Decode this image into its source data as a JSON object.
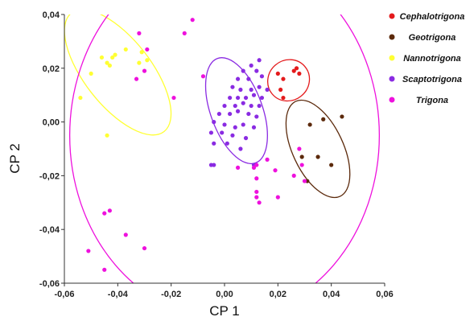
{
  "chart_data": {
    "type": "scatter",
    "xlabel": "CP 1",
    "ylabel": "CP 2",
    "xlim": [
      -0.06,
      0.06
    ],
    "ylim": [
      -0.06,
      0.04
    ],
    "x_ticks": [
      "-0,06",
      "-0,04",
      "-0,02",
      "0,00",
      "0,02",
      "0,04",
      "0,06"
    ],
    "y_ticks": [
      "-0,06",
      "-0,04",
      "-0,02",
      "0,00",
      "0,02",
      "0,04"
    ],
    "grid": false,
    "legend_position": "top-right",
    "series": [
      {
        "name": "Cephalotrigona",
        "color": "#e41a1c",
        "points": [
          [
            0.02,
            0.018
          ],
          [
            0.022,
            0.016
          ],
          [
            0.026,
            0.019
          ],
          [
            0.027,
            0.02
          ],
          [
            0.028,
            0.018
          ],
          [
            0.021,
            0.012
          ],
          [
            0.022,
            0.009
          ]
        ],
        "ellipse": {
          "cx": 0.024,
          "cy": 0.0155,
          "rx": 0.008,
          "ry": 0.0075,
          "angle": 40
        }
      },
      {
        "name": "Geotrigona",
        "color": "#5c2a0c",
        "points": [
          [
            0.032,
            -0.001
          ],
          [
            0.037,
            0.001
          ],
          [
            0.044,
            0.002
          ],
          [
            0.029,
            -0.013
          ],
          [
            0.035,
            -0.013
          ],
          [
            0.04,
            -0.016
          ],
          [
            0.031,
            -0.022
          ]
        ],
        "ellipse": {
          "cx": 0.035,
          "cy": -0.01,
          "rx": 0.0095,
          "ry": 0.0195,
          "angle": 25
        }
      },
      {
        "name": "Nannotrigona",
        "color": "#ffff33",
        "points": [
          [
            -0.046,
            0.024
          ],
          [
            -0.042,
            0.024
          ],
          [
            -0.037,
            0.027
          ],
          [
            -0.041,
            0.025
          ],
          [
            -0.031,
            0.026
          ],
          [
            -0.029,
            0.023
          ],
          [
            -0.044,
            0.022
          ],
          [
            -0.05,
            0.018
          ],
          [
            -0.054,
            0.009
          ],
          [
            -0.044,
            -0.005
          ],
          [
            -0.043,
            0.021
          ],
          [
            -0.032,
            0.022
          ]
        ],
        "ellipse": {
          "cx": -0.04,
          "cy": 0.0185,
          "rx": 0.0125,
          "ry": 0.028,
          "angle": 38
        }
      },
      {
        "name": "Scaptotrigona",
        "color": "#8a2be2",
        "points": [
          [
            0.013,
            0.023
          ],
          [
            0.01,
            0.021
          ],
          [
            0.007,
            0.019
          ],
          [
            0.012,
            0.019
          ],
          [
            0.005,
            0.016
          ],
          [
            0.009,
            0.016
          ],
          [
            0.014,
            0.017
          ],
          [
            0.003,
            0.013
          ],
          [
            0.006,
            0.012
          ],
          [
            0.01,
            0.012
          ],
          [
            0.013,
            0.013
          ],
          [
            0.016,
            0.012
          ],
          [
            0.002,
            0.009
          ],
          [
            0.005,
            0.009
          ],
          [
            0.008,
            0.009
          ],
          [
            0.011,
            0.01
          ],
          [
            0.014,
            0.009
          ],
          [
            0.0,
            0.006
          ],
          [
            0.004,
            0.006
          ],
          [
            0.007,
            0.007
          ],
          [
            0.01,
            0.006
          ],
          [
            0.013,
            0.006
          ],
          [
            -0.002,
            0.003
          ],
          [
            0.002,
            0.003
          ],
          [
            0.005,
            0.004
          ],
          [
            0.009,
            0.003
          ],
          [
            0.012,
            0.002
          ],
          [
            -0.004,
            0.0
          ],
          [
            0.0,
            -0.001
          ],
          [
            0.004,
            -0.002
          ],
          [
            0.007,
            -0.001
          ],
          [
            0.011,
            -0.002
          ],
          [
            -0.005,
            -0.004
          ],
          [
            -0.001,
            -0.004
          ],
          [
            0.003,
            -0.005
          ],
          [
            0.008,
            -0.006
          ],
          [
            -0.004,
            -0.008
          ],
          [
            0.001,
            -0.008
          ],
          [
            0.006,
            -0.01
          ],
          [
            -0.005,
            -0.016
          ],
          [
            -0.004,
            -0.016
          ],
          [
            0.011,
            -0.016
          ]
        ],
        "ellipse": {
          "cx": 0.0045,
          "cy": 0.0042,
          "rx": 0.0097,
          "ry": 0.0207,
          "angle": 20
        }
      },
      {
        "name": "Trigona",
        "color": "#ee11dd",
        "points": [
          [
            -0.032,
            0.033
          ],
          [
            -0.029,
            0.027
          ],
          [
            -0.03,
            0.019
          ],
          [
            -0.033,
            0.016
          ],
          [
            -0.012,
            0.038
          ],
          [
            -0.015,
            0.033
          ],
          [
            -0.008,
            0.017
          ],
          [
            -0.019,
            0.009
          ],
          [
            0.005,
            -0.017
          ],
          [
            0.011,
            -0.017
          ],
          [
            0.012,
            -0.016
          ],
          [
            0.016,
            -0.014
          ],
          [
            0.012,
            -0.021
          ],
          [
            0.019,
            -0.018
          ],
          [
            0.012,
            -0.026
          ],
          [
            0.012,
            -0.028
          ],
          [
            0.013,
            -0.03
          ],
          [
            0.02,
            -0.028
          ],
          [
            0.028,
            -0.01
          ],
          [
            0.029,
            -0.016
          ],
          [
            0.026,
            -0.02
          ],
          [
            0.03,
            -0.022
          ],
          [
            -0.045,
            -0.034
          ],
          [
            -0.043,
            -0.033
          ],
          [
            -0.037,
            -0.042
          ],
          [
            -0.03,
            -0.047
          ],
          [
            -0.051,
            -0.048
          ],
          [
            -0.045,
            -0.055
          ]
        ],
        "ellipse": {
          "cx": 0.0,
          "cy": -0.005,
          "rx": 0.058,
          "ry": 0.068,
          "angle": 0
        }
      }
    ]
  }
}
